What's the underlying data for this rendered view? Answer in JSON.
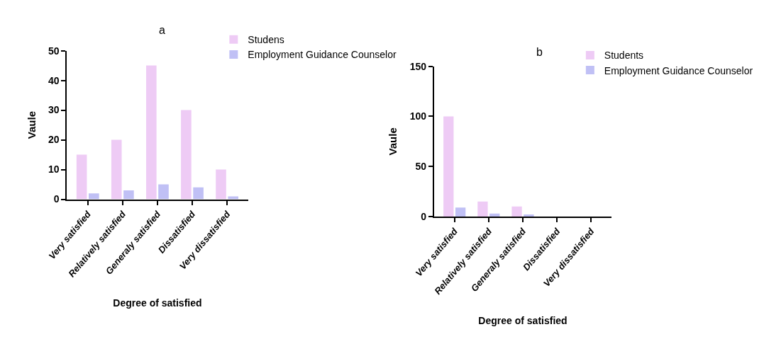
{
  "chart_data": [
    {
      "type": "bar",
      "title": "a",
      "xlabel": "Degree of satisfied",
      "ylabel": "Vaule",
      "categories": [
        "Very satisfied",
        "Relatively satisfied",
        "Generaly satisfied",
        "Dissatisfied",
        "Very dissatisfied"
      ],
      "series": [
        {
          "name": "Studens",
          "color": "#eecbf5",
          "values": [
            15,
            20,
            45,
            30,
            10
          ]
        },
        {
          "name": "Employment Guidance Counselor",
          "color": "#c0c0f5",
          "values": [
            2,
            3,
            5,
            4,
            1
          ]
        }
      ],
      "ylim": [
        0,
        50
      ],
      "yticks": [
        0,
        10,
        20,
        30,
        40,
        50
      ],
      "legend": "top right"
    },
    {
      "type": "bar",
      "title": "b",
      "xlabel": "Degree of satisfied",
      "ylabel": "Vaule",
      "categories": [
        "Very satisfied",
        "Relatively satisfied",
        "Generaly satisfied",
        "Dissatisfied",
        "Very dissatisfied"
      ],
      "series": [
        {
          "name": "Students",
          "color": "#eecbf5",
          "values": [
            100,
            15,
            10,
            0,
            0
          ]
        },
        {
          "name": "Employment Guidance Counselor",
          "color": "#c0c0f5",
          "values": [
            9,
            3,
            2,
            0,
            0
          ]
        }
      ],
      "ylim": [
        0,
        150
      ],
      "yticks": [
        0,
        50,
        100,
        150
      ],
      "legend": "top right"
    }
  ]
}
